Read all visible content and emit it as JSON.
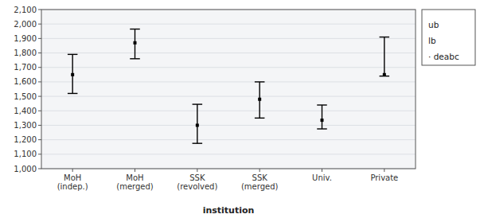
{
  "chart_data": {
    "type": "errorbar",
    "categories": [
      "MoH\n(indep.)",
      "MoH\n(merged)",
      "SSK\n(revolved)",
      "SSK\n(merged)",
      "Univ.",
      "Private"
    ],
    "series": [
      {
        "name": "ub",
        "color": "#000000",
        "values": [
          1790,
          1965,
          1445,
          1600,
          1440,
          1910
        ]
      },
      {
        "name": "lb",
        "color": "#000000",
        "values": [
          1520,
          1760,
          1175,
          1350,
          1275,
          1640
        ]
      },
      {
        "name": "· deabc",
        "color": "#000000",
        "marker": "square",
        "values": [
          1650,
          1870,
          1300,
          1480,
          1335,
          1650
        ]
      }
    ],
    "xlabel": "institution",
    "ylim": [
      1000,
      2100
    ],
    "yticks": [
      {
        "value": 1000,
        "label": "1,000"
      },
      {
        "value": 1100,
        "label": "1,100"
      },
      {
        "value": 1200,
        "label": "1,200"
      },
      {
        "value": 1300,
        "label": "1,300"
      },
      {
        "value": 1400,
        "label": "1,400"
      },
      {
        "value": 1500,
        "label": "1,500"
      },
      {
        "value": 1600,
        "label": "1,600"
      },
      {
        "value": 1700,
        "label": "1,700"
      },
      {
        "value": 1800,
        "label": "1,800"
      },
      {
        "value": 1900,
        "label": "1,900"
      },
      {
        "value": 2000,
        "label": "2,000"
      },
      {
        "value": 2100,
        "label": "2,100"
      }
    ],
    "grid": true,
    "legend": "right"
  }
}
